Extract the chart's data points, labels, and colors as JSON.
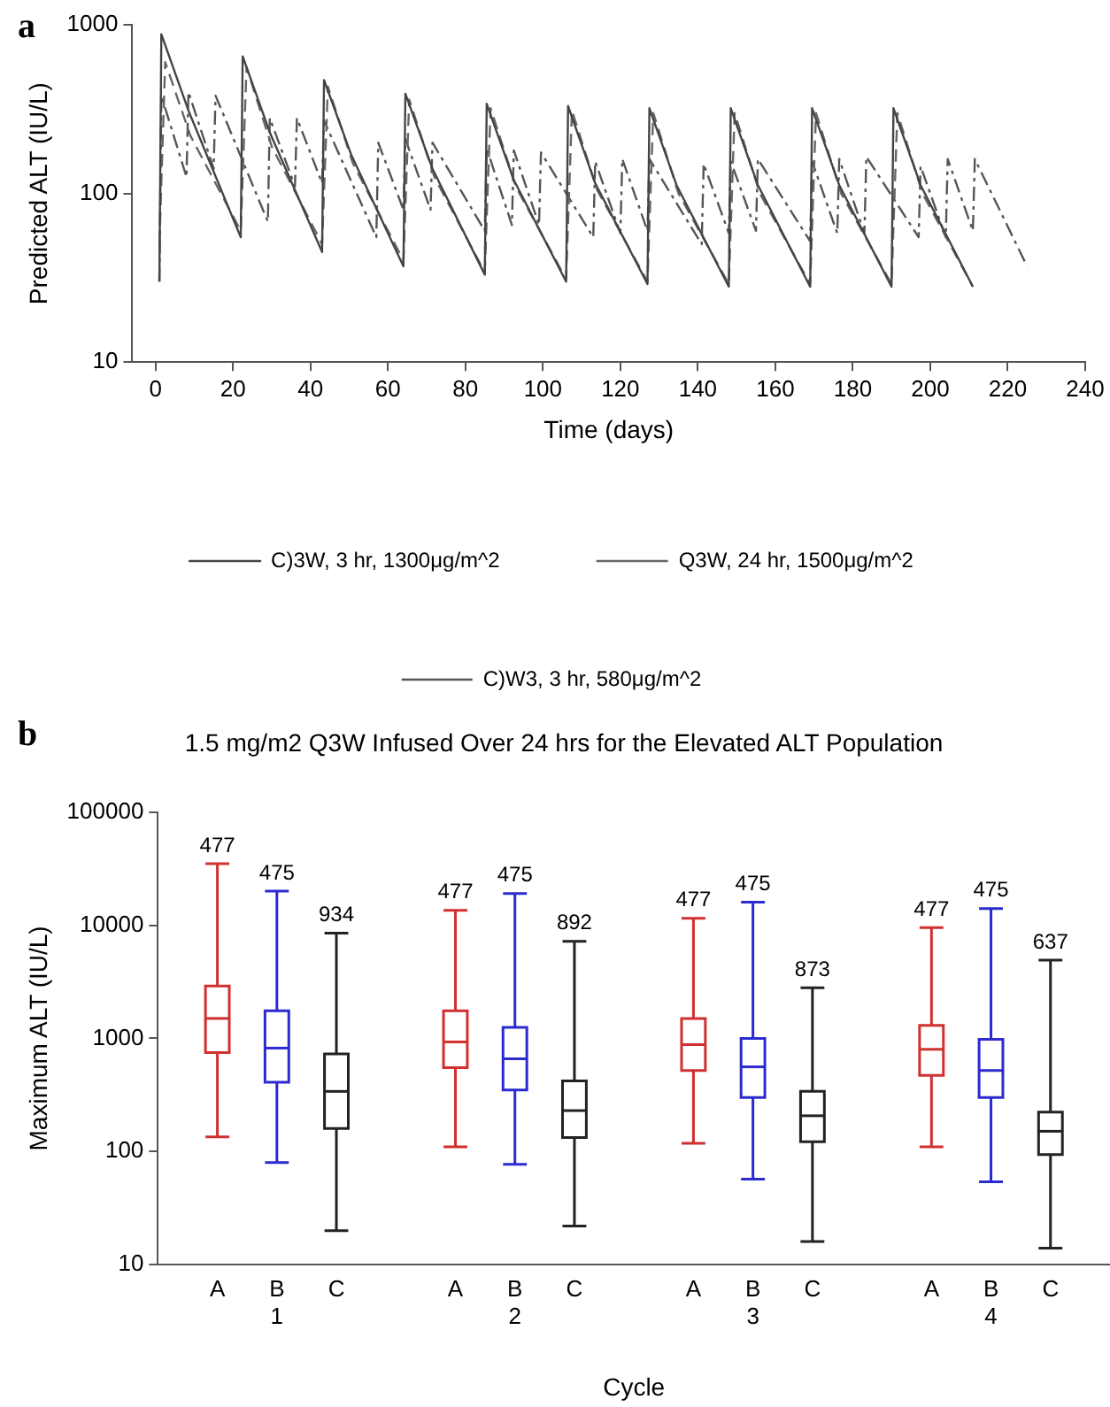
{
  "chart_data": [
    {
      "type": "line",
      "annotations": [
        "a"
      ],
      "xlabel": "Time (days)",
      "ylabel": "Predicted ALT (IU/L)",
      "xlim": [
        -6,
        240
      ],
      "xticks": [
        0,
        20,
        40,
        60,
        80,
        100,
        120,
        140,
        160,
        180,
        200,
        220,
        240
      ],
      "ylim": [
        10,
        1000
      ],
      "yticks": [
        10,
        100,
        1000
      ],
      "log": "y",
      "grid": false,
      "legend": "bottom",
      "marker": "none",
      "series": [
        {
          "name": "C)3W, 3 hr, 1300μg/m^2",
          "color": "#444444",
          "line_style": "solid",
          "x": [
            1,
            1.5,
            8.5,
            22,
            22.5,
            29.5,
            43,
            43.5,
            50.5,
            64,
            64.5,
            71.5,
            85,
            85.5,
            92.5,
            106,
            106.5,
            113.5,
            127,
            127.5,
            134.5,
            148,
            148.5,
            155.5,
            169,
            169.5,
            176.5,
            190,
            190.5,
            197.5,
            211
          ],
          "values": [
            30,
            880,
            310,
            55,
            650,
            230,
            45,
            470,
            170,
            37,
            390,
            140,
            33,
            340,
            120,
            30,
            330,
            115,
            29,
            320,
            112,
            28,
            320,
            112,
            28,
            320,
            112,
            28,
            320,
            112,
            28
          ]
        },
        {
          "name": "Q3W, 24 hr, 1500μg/m^2",
          "color": "#666666",
          "line_style": "dashed",
          "x": [
            1,
            2.5,
            9,
            22,
            23.5,
            30,
            43,
            44.5,
            51,
            64,
            65.5,
            72,
            85,
            86.5,
            93,
            106,
            107.5,
            114,
            127,
            128.5,
            135,
            148,
            149.5,
            156,
            169,
            170.5,
            177,
            190,
            191.5,
            198,
            211
          ],
          "values": [
            50,
            600,
            220,
            60,
            560,
            190,
            50,
            430,
            150,
            40,
            360,
            125,
            34,
            320,
            110,
            31,
            310,
            105,
            30,
            300,
            100,
            29,
            300,
            100,
            29,
            300,
            100,
            29,
            300,
            100,
            28
          ]
        },
        {
          "name": "C)W3, 3 hr, 580μg/m^2",
          "color": "#555555",
          "line_style": "dotted",
          "x": [
            1,
            1.5,
            8,
            8.5,
            15,
            15.5,
            29,
            29.5,
            36,
            36.5,
            43,
            43.5,
            57,
            57.5,
            64,
            64.5,
            71,
            71.5,
            85,
            85.5,
            92,
            92.5,
            99,
            99.5,
            113,
            113.5,
            120,
            120.5,
            127,
            127.5,
            141,
            141.5,
            148,
            148.5,
            155,
            155.5,
            169,
            169.5,
            176,
            176.5,
            183,
            183.5,
            197,
            197.5,
            204,
            204.5,
            211,
            211.5,
            225
          ],
          "values": [
            30,
            380,
            125,
            400,
            140,
            380,
            68,
            280,
            110,
            280,
            115,
            270,
            55,
            200,
            80,
            210,
            80,
            200,
            60,
            185,
            65,
            180,
            65,
            175,
            55,
            155,
            58,
            160,
            60,
            160,
            50,
            150,
            58,
            155,
            60,
            160,
            52,
            155,
            58,
            160,
            58,
            165,
            55,
            145,
            55,
            160,
            60,
            160,
            37
          ]
        }
      ]
    },
    {
      "type": "box",
      "annotations": [
        "b"
      ],
      "title": "1.5 mg/m2 Q3W Infused Over 24 hrs for the Elevated ALT Population",
      "xlabel": "Cycle",
      "ylabel": "Maximum ALT (IU/L)",
      "categories": [
        "1",
        "2",
        "3",
        "4"
      ],
      "ylim": [
        10,
        100000
      ],
      "yticks": [
        10,
        100,
        1000,
        10000,
        100000
      ],
      "log": "y",
      "grid": false,
      "legend": false,
      "series": [
        {
          "name": "A",
          "color": "#d03030",
          "value_labels": [
            "477",
            "477",
            "477",
            "477"
          ],
          "boxes": [
            {
              "low": 135,
              "q1": 750,
              "median": 1500,
              "q3": 2900,
              "high": 35000
            },
            {
              "low": 110,
              "q1": 550,
              "median": 930,
              "q3": 1750,
              "high": 13500
            },
            {
              "low": 118,
              "q1": 520,
              "median": 880,
              "q3": 1500,
              "high": 11500
            },
            {
              "low": 110,
              "q1": 470,
              "median": 800,
              "q3": 1300,
              "high": 9500
            }
          ]
        },
        {
          "name": "B",
          "color": "#2b2bd0",
          "value_labels": [
            "475",
            "475",
            "475",
            "475"
          ],
          "boxes": [
            {
              "low": 80,
              "q1": 410,
              "median": 820,
              "q3": 1750,
              "high": 20000
            },
            {
              "low": 77,
              "q1": 350,
              "median": 660,
              "q3": 1250,
              "high": 19000
            },
            {
              "low": 57,
              "q1": 300,
              "median": 560,
              "q3": 1000,
              "high": 16000
            },
            {
              "low": 54,
              "q1": 300,
              "median": 520,
              "q3": 980,
              "high": 14000
            }
          ]
        },
        {
          "name": "C",
          "color": "#222222",
          "value_labels": [
            "934",
            "892",
            "873",
            "637"
          ],
          "boxes": [
            {
              "low": 20,
              "q1": 160,
              "median": 340,
              "q3": 730,
              "high": 8500
            },
            {
              "low": 22,
              "q1": 133,
              "median": 230,
              "q3": 420,
              "high": 7200
            },
            {
              "low": 16,
              "q1": 122,
              "median": 207,
              "q3": 340,
              "high": 2800
            },
            {
              "low": 14,
              "q1": 94,
              "median": 151,
              "q3": 223,
              "high": 4900
            }
          ]
        }
      ]
    }
  ]
}
